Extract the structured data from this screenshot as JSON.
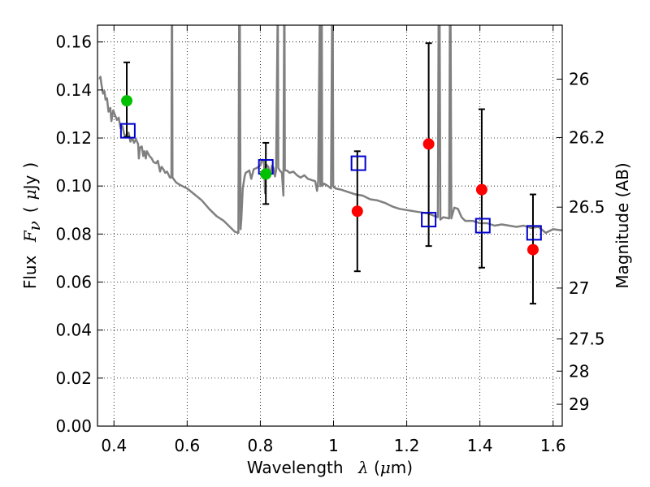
{
  "chart_data": {
    "type": "scatter",
    "xlabel": {
      "prefix": "Wavelength",
      "symbol": "λ",
      "unit_open": " (",
      "unit_mu": "μ",
      "unit_close": "m)"
    },
    "ylabel": {
      "prefix": "Flux",
      "symbol": "F",
      "subscript": "ν",
      "paren_open": "(",
      "unit_mu": "μ",
      "unit_rest": "Jy",
      "paren_close": ")"
    },
    "y2label": "Magnitude (AB)",
    "xlim": [
      0.355,
      1.625
    ],
    "ylim": [
      0.0,
      0.167
    ],
    "x_ticks": [
      0.4,
      0.6,
      0.8,
      1.0,
      1.2,
      1.4,
      1.6
    ],
    "x_tick_labels": [
      "0.4",
      "0.6",
      "0.8",
      "1",
      "1.2",
      "1.4",
      "1.6"
    ],
    "y_ticks": [
      0.0,
      0.02,
      0.04,
      0.06,
      0.08,
      0.1,
      0.12,
      0.14,
      0.16
    ],
    "y_tick_labels": [
      "0.00",
      "0.02",
      "0.04",
      "0.06",
      "0.08",
      "0.10",
      "0.12",
      "0.14",
      "0.16"
    ],
    "y2_ticks": [
      {
        "label": "26",
        "flux": 0.1445
      },
      {
        "label": "26.2",
        "flux": 0.1202
      },
      {
        "label": "26.5",
        "flux": 0.0912
      },
      {
        "label": "27",
        "flux": 0.0575
      },
      {
        "label": "27.5",
        "flux": 0.0363
      },
      {
        "label": "28",
        "flux": 0.0229
      },
      {
        "label": "29",
        "flux": 0.0091
      }
    ],
    "grid": true,
    "colors": {
      "model": "#808080",
      "green": "#00c000",
      "red": "#ff0000",
      "box": "#0000cc",
      "errorbar": "#000000"
    },
    "model_spectrum": [
      [
        0.36,
        0.1445
      ],
      [
        0.363,
        0.1455
      ],
      [
        0.366,
        0.142
      ],
      [
        0.37,
        0.1385
      ],
      [
        0.374,
        0.1395
      ],
      [
        0.377,
        0.136
      ],
      [
        0.381,
        0.1365
      ],
      [
        0.385,
        0.131
      ],
      [
        0.39,
        0.1325
      ],
      [
        0.393,
        0.127
      ],
      [
        0.398,
        0.1315
      ],
      [
        0.403,
        0.1295
      ],
      [
        0.408,
        0.1275
      ],
      [
        0.413,
        0.1285
      ],
      [
        0.418,
        0.124
      ],
      [
        0.423,
        0.125
      ],
      [
        0.428,
        0.1215
      ],
      [
        0.434,
        0.121
      ],
      [
        0.44,
        0.1222
      ],
      [
        0.445,
        0.1185
      ],
      [
        0.45,
        0.12
      ],
      [
        0.455,
        0.118
      ],
      [
        0.46,
        0.1195
      ],
      [
        0.466,
        0.1175
      ],
      [
        0.468,
        0.1115
      ],
      [
        0.471,
        0.116
      ],
      [
        0.476,
        0.1165
      ],
      [
        0.48,
        0.1125
      ],
      [
        0.483,
        0.1145
      ],
      [
        0.487,
        0.1115
      ],
      [
        0.49,
        0.1145
      ],
      [
        0.497,
        0.1125
      ],
      [
        0.503,
        0.1115
      ],
      [
        0.508,
        0.11
      ],
      [
        0.515,
        0.1095
      ],
      [
        0.52,
        0.1105
      ],
      [
        0.526,
        0.106
      ],
      [
        0.53,
        0.108
      ],
      [
        0.535,
        0.107
      ],
      [
        0.54,
        0.1055
      ],
      [
        0.545,
        0.106
      ],
      [
        0.553,
        0.1035
      ],
      [
        0.557,
        0.1035
      ],
      [
        0.558,
        0.167
      ],
      [
        0.559,
        0.167
      ],
      [
        0.56,
        0.1035
      ],
      [
        0.57,
        0.1015
      ],
      [
        0.58,
        0.1005
      ],
      [
        0.6,
        0.099
      ],
      [
        0.62,
        0.0965
      ],
      [
        0.64,
        0.094
      ],
      [
        0.66,
        0.0905
      ],
      [
        0.68,
        0.0875
      ],
      [
        0.7,
        0.0855
      ],
      [
        0.72,
        0.0825
      ],
      [
        0.73,
        0.081
      ],
      [
        0.74,
        0.0805
      ],
      [
        0.742,
        0.167
      ],
      [
        0.744,
        0.167
      ],
      [
        0.746,
        0.082
      ],
      [
        0.748,
        0.086
      ],
      [
        0.752,
        0.099
      ],
      [
        0.757,
        0.104
      ],
      [
        0.76,
        0.1055
      ],
      [
        0.77,
        0.1065
      ],
      [
        0.775,
        0.103
      ],
      [
        0.782,
        0.107
      ],
      [
        0.79,
        0.1075
      ],
      [
        0.8,
        0.1085
      ],
      [
        0.806,
        0.111
      ],
      [
        0.81,
        0.1105
      ],
      [
        0.813,
        0.097
      ],
      [
        0.816,
        0.109
      ],
      [
        0.822,
        0.108
      ],
      [
        0.826,
        0.104
      ],
      [
        0.832,
        0.1085
      ],
      [
        0.836,
        0.1075
      ],
      [
        0.84,
        0.104
      ],
      [
        0.843,
        0.1065
      ],
      [
        0.847,
        0.167
      ],
      [
        0.848,
        0.167
      ],
      [
        0.849,
        0.1075
      ],
      [
        0.853,
        0.1065
      ],
      [
        0.859,
        0.1055
      ],
      [
        0.863,
        0.096
      ],
      [
        0.865,
        0.167
      ],
      [
        0.866,
        0.167
      ],
      [
        0.867,
        0.1065
      ],
      [
        0.872,
        0.1065
      ],
      [
        0.88,
        0.1055
      ],
      [
        0.89,
        0.106
      ],
      [
        0.9,
        0.1045
      ],
      [
        0.91,
        0.1035
      ],
      [
        0.92,
        0.1045
      ],
      [
        0.93,
        0.103
      ],
      [
        0.94,
        0.1025
      ],
      [
        0.95,
        0.102
      ],
      [
        0.955,
        0.098
      ],
      [
        0.958,
        0.102
      ],
      [
        0.962,
        0.167
      ],
      [
        0.963,
        0.167
      ],
      [
        0.964,
        0.1
      ],
      [
        0.967,
        0.167
      ],
      [
        0.968,
        0.167
      ],
      [
        0.969,
        0.1
      ],
      [
        0.974,
        0.101
      ],
      [
        0.985,
        0.1
      ],
      [
        0.993,
        0.099
      ],
      [
        0.996,
        0.167
      ],
      [
        0.998,
        0.167
      ],
      [
        0.999,
        0.1
      ],
      [
        1.005,
        0.099
      ],
      [
        1.02,
        0.0985
      ],
      [
        1.04,
        0.0975
      ],
      [
        1.06,
        0.0965
      ],
      [
        1.08,
        0.096
      ],
      [
        1.1,
        0.0945
      ],
      [
        1.12,
        0.094
      ],
      [
        1.14,
        0.093
      ],
      [
        1.16,
        0.0915
      ],
      [
        1.18,
        0.0905
      ],
      [
        1.2,
        0.09
      ],
      [
        1.22,
        0.0895
      ],
      [
        1.24,
        0.089
      ],
      [
        1.26,
        0.0885
      ],
      [
        1.28,
        0.0873
      ],
      [
        1.285,
        0.087
      ],
      [
        1.287,
        0.167
      ],
      [
        1.29,
        0.167
      ],
      [
        1.292,
        0.086
      ],
      [
        1.3,
        0.087
      ],
      [
        1.316,
        0.0865
      ],
      [
        1.318,
        0.167
      ],
      [
        1.32,
        0.167
      ],
      [
        1.322,
        0.0865
      ],
      [
        1.33,
        0.091
      ],
      [
        1.34,
        0.0905
      ],
      [
        1.35,
        0.087
      ],
      [
        1.36,
        0.0855
      ],
      [
        1.38,
        0.0855
      ],
      [
        1.4,
        0.0845
      ],
      [
        1.42,
        0.0845
      ],
      [
        1.44,
        0.0835
      ],
      [
        1.46,
        0.084
      ],
      [
        1.48,
        0.0835
      ],
      [
        1.5,
        0.083
      ],
      [
        1.52,
        0.0835
      ],
      [
        1.54,
        0.0825
      ],
      [
        1.56,
        0.083
      ],
      [
        1.58,
        0.0805
      ],
      [
        1.6,
        0.082
      ],
      [
        1.625,
        0.0815
      ]
    ],
    "green_points": [
      {
        "x": 0.435,
        "y": 0.1355
      },
      {
        "x": 0.815,
        "y": 0.105
      }
    ],
    "red_points": [
      {
        "x": 1.065,
        "y": 0.0895
      },
      {
        "x": 1.26,
        "y": 0.1175
      },
      {
        "x": 1.405,
        "y": 0.0985
      },
      {
        "x": 1.545,
        "y": 0.0735
      }
    ],
    "model_boxes": [
      {
        "x": 0.438,
        "y": 0.123
      },
      {
        "x": 0.815,
        "y": 0.108
      },
      {
        "x": 1.068,
        "y": 0.1095
      },
      {
        "x": 1.26,
        "y": 0.086
      },
      {
        "x": 1.408,
        "y": 0.0835
      },
      {
        "x": 1.548,
        "y": 0.0805
      }
    ],
    "error_bars": [
      {
        "x": 0.435,
        "low": 0.1205,
        "high": 0.1515
      },
      {
        "x": 0.815,
        "low": 0.0925,
        "high": 0.118
      },
      {
        "x": 1.065,
        "low": 0.0645,
        "high": 0.1145
      },
      {
        "x": 1.26,
        "low": 0.075,
        "high": 0.1595
      },
      {
        "x": 1.405,
        "low": 0.066,
        "high": 0.132
      },
      {
        "x": 1.545,
        "low": 0.051,
        "high": 0.0965
      }
    ]
  }
}
